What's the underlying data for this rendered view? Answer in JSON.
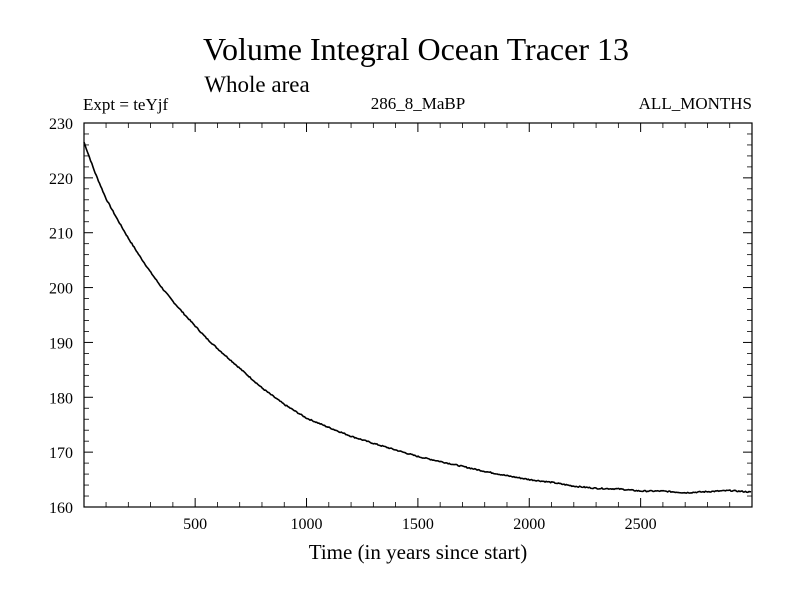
{
  "chart_data": {
    "type": "line",
    "title": "Volume Integral Ocean Tracer 13",
    "subtitle": "Whole area",
    "annotations": {
      "experiment": "Expt = teYjf",
      "run": "286_8_MaBP",
      "period": "ALL_MONTHS"
    },
    "xlabel": "Time (in years since start)",
    "ylabel": "",
    "xlim": [
      1,
      3000
    ],
    "ylim": [
      160,
      230
    ],
    "x_ticks": [
      500,
      1000,
      1500,
      2000,
      2500
    ],
    "x_tick_labels": [
      "500",
      "1000",
      "1500",
      "2000",
      "2500"
    ],
    "y_ticks": [
      160,
      170,
      180,
      190,
      200,
      210,
      220,
      230
    ],
    "y_tick_labels": [
      "160",
      "170",
      "180",
      "190",
      "200",
      "210",
      "220",
      "230"
    ],
    "grid": false,
    "series": [
      {
        "name": "Tracer 13",
        "x": [
          1,
          50,
          100,
          150,
          200,
          250,
          300,
          350,
          400,
          450,
          500,
          550,
          600,
          700,
          800,
          900,
          1000,
          1100,
          1200,
          1300,
          1400,
          1500,
          1600,
          1700,
          1800,
          1900,
          2000,
          2100,
          2200,
          2300,
          2400,
          2500,
          2600,
          2700,
          2800,
          2900,
          3000
        ],
        "values": [
          226.5,
          221.0,
          216.2,
          212.5,
          209.0,
          205.8,
          202.8,
          200.0,
          197.5,
          195.2,
          193.0,
          190.8,
          188.9,
          185.3,
          181.7,
          178.7,
          176.2,
          174.5,
          172.9,
          171.6,
          170.4,
          169.2,
          168.3,
          167.4,
          166.5,
          165.7,
          165.0,
          164.5,
          163.8,
          163.4,
          163.3,
          162.9,
          162.9,
          162.6,
          162.8,
          163.0,
          162.7
        ]
      }
    ]
  }
}
